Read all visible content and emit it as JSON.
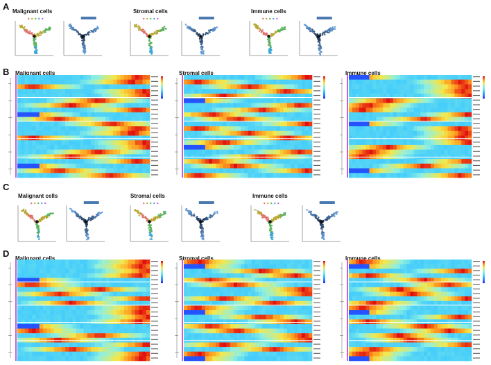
{
  "panels": [
    {
      "letter": "A",
      "titles": [
        "Malignant cells",
        "Stromal cells",
        "Immune cells"
      ]
    },
    {
      "letter": "B",
      "titles": [
        "Malignant cells",
        "Stromal cells",
        "Immune cells"
      ]
    },
    {
      "letter": "C",
      "titles": [
        "Malignant cells",
        "Stromal cells",
        "Immune cells"
      ]
    },
    {
      "letter": "D",
      "titles": [
        "Malignant cells",
        "Stromal cells",
        "Immune cells"
      ]
    }
  ],
  "colors": {
    "state": [
      "#e0726a",
      "#b8a832",
      "#5bb35c",
      "#3aa8d8",
      "#c75fd6"
    ],
    "pseudotime_dark": "#1a2e4a",
    "pseudotime_light": "#6aa6e6",
    "heat_low": "#1f3cff",
    "heat_mid": "#7fffe0",
    "heat_high": "#ff3a00"
  },
  "legend_labels": {
    "state": "State",
    "pseudotime": "Pseudotime"
  }
}
